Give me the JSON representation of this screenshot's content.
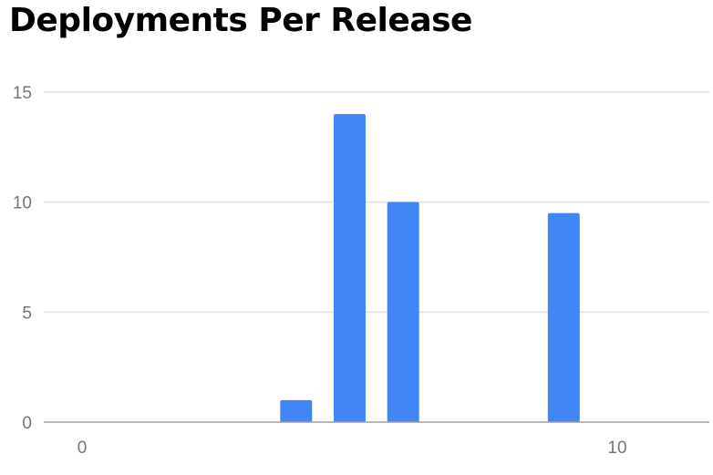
{
  "chart_data": {
    "type": "bar",
    "title": "Deployments Per Release",
    "xlabel": "",
    "ylabel": "",
    "x": [
      4,
      5,
      6,
      9
    ],
    "values": [
      1,
      14,
      10,
      9.5
    ],
    "xlim": [
      0,
      11.5
    ],
    "ylim": [
      0,
      15
    ],
    "y_ticks": [
      0,
      5,
      10,
      15
    ],
    "x_ticks": [
      0,
      10
    ],
    "grid": true,
    "legend": "none",
    "bar_color": "#4285f4",
    "grid_color": "#e0e0e0",
    "axis_color": "#9e9e9e",
    "tick_label_color": "#757575"
  }
}
